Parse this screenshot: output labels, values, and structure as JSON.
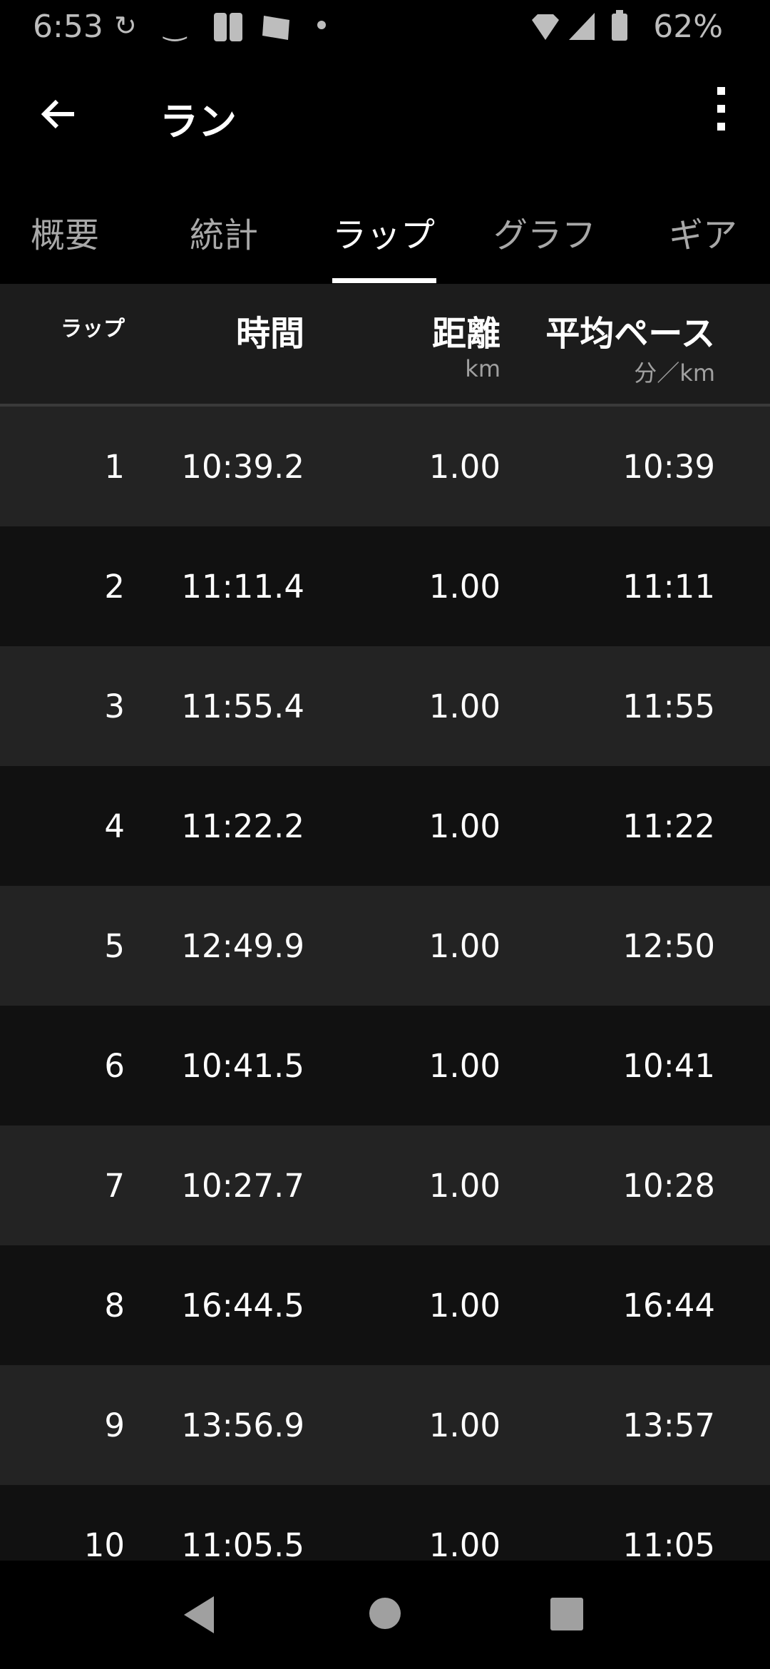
{
  "status_bar": {
    "time": "6:53",
    "battery": "62%",
    "icons": [
      "sync-icon",
      "amazon-icon",
      "game-icon",
      "weathernews-icon",
      "dot-icon",
      "wifi-icon",
      "signal-icon",
      "battery-icon"
    ]
  },
  "app_bar": {
    "title": "ラン",
    "back_icon": "arrow-left-icon",
    "menu_icon": "more-vert-icon"
  },
  "tabs": [
    {
      "label": "概要",
      "active": false
    },
    {
      "label": "統計",
      "active": false
    },
    {
      "label": "ラップ",
      "active": true
    },
    {
      "label": "グラフ",
      "active": false
    },
    {
      "label": "ギア",
      "active": false
    }
  ],
  "table": {
    "headers": {
      "lap": "ラップ",
      "time": "時間",
      "distance": "距離",
      "distance_unit": "km",
      "pace": "平均ペース",
      "pace_unit": "分／km"
    },
    "rows": [
      {
        "lap": "1",
        "time": "10:39.2",
        "distance": "1.00",
        "pace": "10:39"
      },
      {
        "lap": "2",
        "time": "11:11.4",
        "distance": "1.00",
        "pace": "11:11"
      },
      {
        "lap": "3",
        "time": "11:55.4",
        "distance": "1.00",
        "pace": "11:55"
      },
      {
        "lap": "4",
        "time": "11:22.2",
        "distance": "1.00",
        "pace": "11:22"
      },
      {
        "lap": "5",
        "time": "12:49.9",
        "distance": "1.00",
        "pace": "12:50"
      },
      {
        "lap": "6",
        "time": "10:41.5",
        "distance": "1.00",
        "pace": "10:41"
      },
      {
        "lap": "7",
        "time": "10:27.7",
        "distance": "1.00",
        "pace": "10:28"
      },
      {
        "lap": "8",
        "time": "16:44.5",
        "distance": "1.00",
        "pace": "16:44"
      },
      {
        "lap": "9",
        "time": "13:56.9",
        "distance": "1.00",
        "pace": "13:57"
      },
      {
        "lap": "10",
        "time": "11:05.5",
        "distance": "1.00",
        "pace": "11:05"
      }
    ]
  },
  "nav_bar": {
    "icons": [
      "back-triangle-icon",
      "home-circle-icon",
      "recents-square-icon"
    ]
  }
}
